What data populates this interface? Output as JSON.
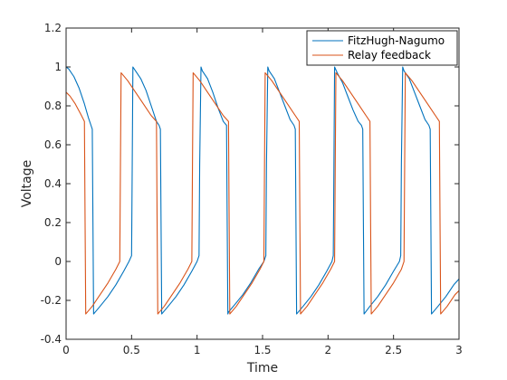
{
  "chart_data": {
    "type": "line",
    "title": "",
    "xlabel": "Time",
    "ylabel": "Voltage",
    "xlim": [
      0,
      3
    ],
    "ylim": [
      -0.4,
      1.2
    ],
    "xticks": [
      0,
      0.5,
      1,
      1.5,
      2,
      2.5,
      3
    ],
    "xtick_labels": [
      "0",
      "0.5",
      "1",
      "1.5",
      "2",
      "2.5",
      "3"
    ],
    "yticks": [
      -0.4,
      -0.2,
      0,
      0.2,
      0.4,
      0.6,
      0.8,
      1,
      1.2
    ],
    "ytick_labels": [
      "-0.4",
      "-0.2",
      "0",
      "0.2",
      "0.4",
      "0.6",
      "0.8",
      "1",
      "1.2"
    ],
    "grid": false,
    "legend_position": "top-right",
    "series": [
      {
        "name": "FitzHugh-Nagumo",
        "color": "#0072BD",
        "x": [
          0,
          0.02,
          0.06,
          0.1,
          0.14,
          0.17,
          0.19,
          0.2,
          0.205,
          0.21,
          0.26,
          0.32,
          0.38,
          0.44,
          0.48,
          0.5,
          0.505,
          0.51,
          0.53,
          0.57,
          0.61,
          0.65,
          0.69,
          0.71,
          0.72,
          0.725,
          0.73,
          0.78,
          0.84,
          0.9,
          0.96,
          1.0,
          1.015,
          1.02,
          1.03,
          1.04,
          1.08,
          1.12,
          1.16,
          1.2,
          1.225,
          1.23,
          1.235,
          1.24,
          1.29,
          1.35,
          1.41,
          1.47,
          1.51,
          1.525,
          1.53,
          1.54,
          1.55,
          1.59,
          1.63,
          1.67,
          1.71,
          1.74,
          1.75,
          1.755,
          1.76,
          1.81,
          1.87,
          1.93,
          1.99,
          2.03,
          2.04,
          2.045,
          2.05,
          2.07,
          2.11,
          2.15,
          2.19,
          2.23,
          2.255,
          2.265,
          2.27,
          2.275,
          2.32,
          2.38,
          2.44,
          2.5,
          2.545,
          2.555,
          2.56,
          2.57,
          2.58,
          2.62,
          2.66,
          2.7,
          2.74,
          2.77,
          2.78,
          2.785,
          2.79,
          2.84,
          2.9,
          2.96,
          3.0
        ],
        "y": [
          1.0,
          0.99,
          0.95,
          0.89,
          0.81,
          0.74,
          0.7,
          0.68,
          0.2,
          -0.27,
          -0.23,
          -0.18,
          -0.12,
          -0.05,
          0.0,
          0.03,
          0.5,
          1.0,
          0.98,
          0.94,
          0.88,
          0.8,
          0.72,
          0.7,
          0.68,
          0.2,
          -0.27,
          -0.23,
          -0.18,
          -0.12,
          -0.05,
          0.0,
          0.03,
          0.5,
          1.0,
          0.98,
          0.94,
          0.87,
          0.79,
          0.72,
          0.7,
          0.2,
          -0.27,
          -0.26,
          -0.22,
          -0.17,
          -0.11,
          -0.04,
          0.0,
          0.03,
          0.5,
          1.0,
          0.98,
          0.94,
          0.87,
          0.8,
          0.73,
          0.7,
          0.68,
          0.2,
          -0.27,
          -0.23,
          -0.18,
          -0.12,
          -0.05,
          0.0,
          0.03,
          0.5,
          1.0,
          0.97,
          0.92,
          0.85,
          0.78,
          0.72,
          0.7,
          0.68,
          0.2,
          -0.27,
          -0.23,
          -0.18,
          -0.12,
          -0.05,
          0.0,
          0.03,
          0.5,
          1.0,
          0.98,
          0.94,
          0.87,
          0.8,
          0.73,
          0.7,
          0.68,
          0.2,
          -0.27,
          -0.23,
          -0.18,
          -0.12,
          -0.09
        ]
      },
      {
        "name": "Relay feedback",
        "color": "#D95319",
        "x": [
          0,
          0.03,
          0.07,
          0.11,
          0.14,
          0.145,
          0.15,
          0.2,
          0.26,
          0.32,
          0.38,
          0.41,
          0.415,
          0.42,
          0.47,
          0.53,
          0.59,
          0.65,
          0.69,
          0.695,
          0.7,
          0.75,
          0.81,
          0.87,
          0.93,
          0.96,
          0.965,
          0.97,
          1.02,
          1.08,
          1.14,
          1.2,
          1.24,
          1.245,
          1.25,
          1.3,
          1.36,
          1.42,
          1.48,
          1.51,
          1.515,
          1.52,
          1.57,
          1.63,
          1.69,
          1.75,
          1.78,
          1.785,
          1.79,
          1.84,
          1.9,
          1.96,
          2.02,
          2.05,
          2.055,
          2.06,
          2.11,
          2.17,
          2.23,
          2.29,
          2.32,
          2.325,
          2.33,
          2.38,
          2.44,
          2.5,
          2.56,
          2.58,
          2.585,
          2.59,
          2.64,
          2.7,
          2.76,
          2.82,
          2.85,
          2.855,
          2.86,
          2.91,
          2.97,
          3.0
        ],
        "y": [
          0.87,
          0.85,
          0.81,
          0.76,
          0.72,
          0.2,
          -0.27,
          -0.23,
          -0.17,
          -0.11,
          -0.04,
          0.0,
          0.5,
          0.97,
          0.93,
          0.87,
          0.81,
          0.75,
          0.72,
          0.2,
          -0.27,
          -0.23,
          -0.17,
          -0.11,
          -0.04,
          0.0,
          0.5,
          0.97,
          0.93,
          0.87,
          0.81,
          0.75,
          0.72,
          0.2,
          -0.27,
          -0.23,
          -0.17,
          -0.11,
          -0.04,
          0.0,
          0.5,
          0.97,
          0.93,
          0.87,
          0.81,
          0.75,
          0.72,
          0.2,
          -0.27,
          -0.23,
          -0.17,
          -0.11,
          -0.04,
          0.0,
          0.5,
          0.97,
          0.93,
          0.87,
          0.81,
          0.75,
          0.72,
          0.2,
          -0.27,
          -0.23,
          -0.17,
          -0.11,
          -0.04,
          0.0,
          0.5,
          0.97,
          0.93,
          0.87,
          0.81,
          0.75,
          0.72,
          0.2,
          -0.27,
          -0.23,
          -0.17,
          -0.15
        ]
      }
    ]
  }
}
